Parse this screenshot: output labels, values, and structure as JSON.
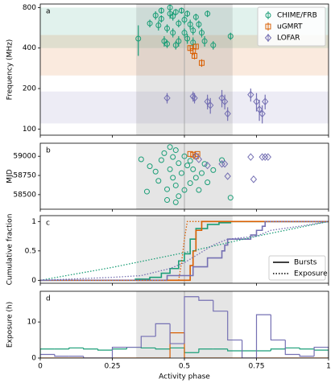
{
  "chart_data": [
    {
      "type": "errorbar",
      "panel_label": "a",
      "ylabel": "Frequency (MHz)",
      "log_y": true,
      "xlim": [
        0,
        1
      ],
      "xticks": [
        0,
        0.25,
        0.5,
        0.75,
        1
      ],
      "ylim": [
        90,
        850
      ],
      "yticks": [
        100,
        200,
        400,
        800
      ],
      "shaded_span": [
        0.333,
        0.667
      ],
      "vline": 0.5,
      "legend": "upper right",
      "series": [
        {
          "name": "CHIME/FRB",
          "color": "#1b9e77",
          "marker": "circle",
          "band": [
            400,
            800
          ],
          "x": [
            0.34,
            0.38,
            0.4,
            0.41,
            0.42,
            0.42,
            0.43,
            0.44,
            0.44,
            0.45,
            0.45,
            0.46,
            0.46,
            0.47,
            0.47,
            0.48,
            0.48,
            0.49,
            0.5,
            0.5,
            0.51,
            0.51,
            0.52,
            0.53,
            0.53,
            0.54,
            0.55,
            0.56,
            0.57,
            0.58,
            0.6,
            0.66
          ],
          "y": [
            470,
            610,
            700,
            590,
            760,
            660,
            450,
            560,
            430,
            720,
            800,
            520,
            690,
            740,
            420,
            610,
            450,
            760,
            520,
            650,
            470,
            720,
            600,
            440,
            540,
            680,
            600,
            520,
            450,
            720,
            420,
            490
          ],
          "yerr": [
            120,
            40,
            50,
            50,
            40,
            40,
            40,
            40,
            30,
            60,
            40,
            40,
            50,
            40,
            30,
            40,
            40,
            40,
            40,
            50,
            40,
            40,
            50,
            40,
            40,
            40,
            40,
            40,
            40,
            40,
            30,
            30
          ]
        },
        {
          "name": "uGMRT",
          "color": "#d95f02",
          "marker": "square",
          "band": [
            250,
            500
          ],
          "x": [
            0.52,
            0.53,
            0.535,
            0.54,
            0.56
          ],
          "y": [
            400,
            380,
            350,
            410,
            310
          ],
          "yerr": [
            20,
            25,
            20,
            20,
            20
          ]
        },
        {
          "name": "LOFAR",
          "color": "#7570b3",
          "marker": "diamond",
          "band": [
            110,
            190
          ],
          "x": [
            0.44,
            0.53,
            0.535,
            0.58,
            0.59,
            0.63,
            0.64,
            0.65,
            0.73,
            0.75,
            0.76,
            0.77,
            0.78
          ],
          "y": [
            170,
            175,
            170,
            160,
            150,
            170,
            160,
            130,
            180,
            160,
            140,
            130,
            160
          ],
          "yerr": [
            15,
            15,
            15,
            20,
            20,
            25,
            20,
            15,
            20,
            25,
            25,
            20,
            20
          ]
        }
      ]
    },
    {
      "type": "scatter",
      "panel_label": "b",
      "ylabel": "MJD",
      "xlim": [
        0,
        1
      ],
      "xticks": [
        0,
        0.25,
        0.5,
        0.75,
        1
      ],
      "ylim": [
        58310,
        59170
      ],
      "yticks": [
        58500,
        58750,
        59000
      ],
      "shaded_span": [
        0.333,
        0.667
      ],
      "vline": 0.5,
      "series": [
        {
          "name": "CHIME/FRB",
          "color": "#1b9e77",
          "marker": "circle",
          "x": [
            0.35,
            0.38,
            0.4,
            0.41,
            0.42,
            0.43,
            0.44,
            0.45,
            0.45,
            0.46,
            0.46,
            0.47,
            0.47,
            0.48,
            0.48,
            0.49,
            0.5,
            0.5,
            0.51,
            0.52,
            0.52,
            0.53,
            0.54,
            0.55,
            0.56,
            0.57,
            0.58,
            0.6,
            0.63,
            0.66,
            0.44,
            0.47,
            0.37
          ],
          "y": [
            58960,
            58870,
            58800,
            58680,
            58950,
            59040,
            58570,
            59120,
            58830,
            58990,
            58720,
            59080,
            58620,
            58910,
            58480,
            58780,
            59000,
            58560,
            58880,
            58650,
            58940,
            58830,
            58720,
            58560,
            58780,
            58900,
            58660,
            58820,
            58950,
            58460,
            58430,
            58400,
            58540
          ]
        },
        {
          "name": "uGMRT",
          "color": "#d95f02",
          "marker": "square",
          "x": [
            0.52,
            0.53,
            0.54,
            0.545
          ],
          "y": [
            59030,
            59020,
            59000,
            59030
          ]
        },
        {
          "name": "LOFAR",
          "color": "#7570b3",
          "marker": "diamond",
          "x": [
            0.54,
            0.55,
            0.58,
            0.63,
            0.64,
            0.65,
            0.73,
            0.74,
            0.77,
            0.78,
            0.79
          ],
          "y": [
            59000,
            58960,
            58880,
            58900,
            58900,
            58740,
            58990,
            58700,
            58990,
            58990,
            58990
          ]
        }
      ]
    },
    {
      "type": "line",
      "panel_label": "c",
      "ylabel": "Cumulative fraction",
      "xlim": [
        0,
        1
      ],
      "xticks": [
        0,
        0.25,
        0.5,
        0.75,
        1
      ],
      "ylim": [
        -0.05,
        1.1
      ],
      "yticks": [
        0,
        0.5,
        1
      ],
      "shaded_span": [
        0.333,
        0.667
      ],
      "vline": 0.5,
      "legend": "lower right",
      "legend_entries": [
        {
          "name": "Bursts",
          "dash": "solid"
        },
        {
          "name": "Exposure",
          "dash": "dotted"
        }
      ],
      "series": [
        {
          "color": "#1b9e77",
          "dash": "solid",
          "step": true,
          "x": [
            0,
            0.33,
            0.38,
            0.42,
            0.45,
            0.48,
            0.5,
            0.52,
            0.54,
            0.58,
            0.62,
            0.66,
            1
          ],
          "y": [
            0,
            0.02,
            0.05,
            0.12,
            0.2,
            0.33,
            0.45,
            0.7,
            0.88,
            0.95,
            0.98,
            1,
            1
          ]
        },
        {
          "color": "#d95f02",
          "dash": "solid",
          "step": true,
          "x": [
            0,
            0.5,
            0.52,
            0.53,
            0.54,
            0.56,
            1
          ],
          "y": [
            0,
            0,
            0.25,
            0.5,
            0.85,
            1,
            1
          ]
        },
        {
          "color": "#7570b3",
          "dash": "solid",
          "step": true,
          "x": [
            0,
            0.44,
            0.53,
            0.58,
            0.63,
            0.64,
            0.65,
            0.73,
            0.75,
            0.77,
            0.78,
            1
          ],
          "y": [
            0,
            0.08,
            0.23,
            0.38,
            0.5,
            0.6,
            0.7,
            0.77,
            0.85,
            0.92,
            1,
            1
          ]
        },
        {
          "color": "#1b9e77",
          "dash": "dotted",
          "step": false,
          "x": [
            0,
            0.25,
            0.5,
            0.75,
            1
          ],
          "y": [
            0,
            0.22,
            0.47,
            0.75,
            1
          ]
        },
        {
          "color": "#d95f02",
          "dash": "dotted",
          "step": false,
          "x": [
            0,
            0.48,
            0.49,
            0.5,
            0.51,
            1
          ],
          "y": [
            0,
            0,
            0.3,
            0.7,
            1,
            1
          ]
        },
        {
          "color": "#7570b3",
          "dash": "dotted",
          "step": false,
          "x": [
            0,
            0.25,
            0.35,
            0.45,
            0.5,
            0.55,
            0.6,
            0.65,
            0.75,
            0.8,
            0.9,
            1
          ],
          "y": [
            0,
            0.05,
            0.08,
            0.2,
            0.3,
            0.45,
            0.6,
            0.7,
            0.75,
            0.85,
            0.92,
            1
          ]
        }
      ]
    },
    {
      "type": "histogram",
      "panel_label": "d",
      "ylabel": "Exposure (h)",
      "xlabel": "Activity phase",
      "xlim": [
        0,
        1
      ],
      "xticks": [
        0,
        0.25,
        0.5,
        0.75,
        1
      ],
      "ylim": [
        0,
        18.5
      ],
      "yticks": [
        0,
        10
      ],
      "shaded_span": [
        0.333,
        0.667
      ],
      "vline": 0.5,
      "bins": [
        0,
        0.05,
        0.1,
        0.15,
        0.2,
        0.25,
        0.3,
        0.35,
        0.4,
        0.45,
        0.5,
        0.55,
        0.6,
        0.65,
        0.7,
        0.75,
        0.8,
        0.85,
        0.9,
        0.95,
        1
      ],
      "series": [
        {
          "color": "#1b9e77",
          "values": [
            2.5,
            2.5,
            2.8,
            2.5,
            2.2,
            2.5,
            3,
            2.8,
            2.5,
            2.8,
            1.5,
            2.5,
            2.5,
            2,
            2,
            2,
            2.5,
            2.8,
            2.5,
            2.2
          ]
        },
        {
          "color": "#d95f02",
          "values": [
            0,
            0,
            0,
            0,
            0,
            0,
            0,
            0,
            0,
            7,
            0,
            0,
            0,
            0,
            0,
            0,
            0,
            0,
            0,
            0
          ]
        },
        {
          "color": "#7570b3",
          "values": [
            1,
            0.5,
            0.5,
            0,
            0,
            3,
            3,
            6,
            9.5,
            4,
            17,
            16,
            13,
            5,
            0,
            12,
            5,
            1,
            0.5,
            3
          ]
        }
      ]
    }
  ]
}
